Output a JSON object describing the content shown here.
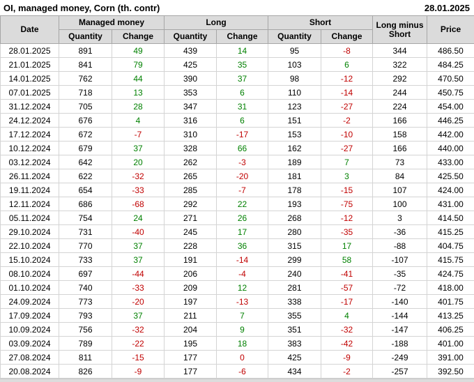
{
  "title": "OI, managed money, Corn (th. contr)",
  "report_date": "28.01.2025",
  "colors": {
    "positive": "#008000",
    "negative": "#c00000",
    "header_bg": "#dbdbdb",
    "header_border": "#a6a6a6",
    "row_border": "#d4d4d4"
  },
  "chart_data": {
    "type": "table",
    "title": "OI, managed money, Corn (th. contr)",
    "as_of_date": "28.01.2025",
    "column_groups": [
      {
        "label": "Date"
      },
      {
        "label": "Managed money",
        "children": [
          "Quantity",
          "Change"
        ]
      },
      {
        "label": "Long",
        "children": [
          "Quantity",
          "Change"
        ]
      },
      {
        "label": "Short",
        "children": [
          "Quantity",
          "Change"
        ]
      },
      {
        "label": "Long minus Short"
      },
      {
        "label": "Price"
      }
    ],
    "columns": [
      "Date",
      "Managed money Quantity",
      "Managed money Change",
      "Long Quantity",
      "Long Change",
      "Short Quantity",
      "Short Change",
      "Long minus Short",
      "Price"
    ],
    "color_rule": "change columns (Managed money Change, Long Change, Short Change): values > 0 green, values <= 0 red; all other columns black",
    "rows": [
      [
        "28.01.2025",
        891,
        49,
        439,
        14,
        95,
        -8,
        344,
        "486.50"
      ],
      [
        "21.01.2025",
        841,
        79,
        425,
        35,
        103,
        6,
        322,
        "484.25"
      ],
      [
        "14.01.2025",
        762,
        44,
        390,
        37,
        98,
        -12,
        292,
        "470.50"
      ],
      [
        "07.01.2025",
        718,
        13,
        353,
        6,
        110,
        -14,
        244,
        "450.75"
      ],
      [
        "31.12.2024",
        705,
        28,
        347,
        31,
        123,
        -27,
        224,
        "454.00"
      ],
      [
        "24.12.2024",
        676,
        4,
        316,
        6,
        151,
        -2,
        166,
        "446.25"
      ],
      [
        "17.12.2024",
        672,
        -7,
        310,
        -17,
        153,
        -10,
        158,
        "442.00"
      ],
      [
        "10.12.2024",
        679,
        37,
        328,
        66,
        162,
        -27,
        166,
        "440.00"
      ],
      [
        "03.12.2024",
        642,
        20,
        262,
        -3,
        189,
        7,
        73,
        "433.00"
      ],
      [
        "26.11.2024",
        622,
        -32,
        265,
        -20,
        181,
        3,
        84,
        "425.50"
      ],
      [
        "19.11.2024",
        654,
        -33,
        285,
        -7,
        178,
        -15,
        107,
        "424.00"
      ],
      [
        "12.11.2024",
        686,
        -68,
        292,
        22,
        193,
        -75,
        100,
        "431.00"
      ],
      [
        "05.11.2024",
        754,
        24,
        271,
        26,
        268,
        -12,
        3,
        "414.50"
      ],
      [
        "29.10.2024",
        731,
        -40,
        245,
        17,
        280,
        -35,
        -36,
        "415.25"
      ],
      [
        "22.10.2024",
        770,
        37,
        228,
        36,
        315,
        17,
        -88,
        "404.75"
      ],
      [
        "15.10.2024",
        733,
        37,
        191,
        -14,
        299,
        58,
        -107,
        "415.75"
      ],
      [
        "08.10.2024",
        697,
        -44,
        206,
        -4,
        240,
        -41,
        -35,
        "424.75"
      ],
      [
        "01.10.2024",
        740,
        -33,
        209,
        12,
        281,
        -57,
        -72,
        "418.00"
      ],
      [
        "24.09.2024",
        773,
        -20,
        197,
        -13,
        338,
        -17,
        -140,
        "401.75"
      ],
      [
        "17.09.2024",
        793,
        37,
        211,
        7,
        355,
        4,
        -144,
        "413.25"
      ],
      [
        "10.09.2024",
        756,
        -32,
        204,
        9,
        351,
        -32,
        -147,
        "406.25"
      ],
      [
        "03.09.2024",
        789,
        -22,
        195,
        18,
        383,
        -42,
        -188,
        "401.00"
      ],
      [
        "27.08.2024",
        811,
        -15,
        177,
        0,
        425,
        -9,
        -249,
        "391.00"
      ],
      [
        "20.08.2024",
        826,
        -9,
        177,
        -6,
        434,
        -2,
        -257,
        "392.50"
      ]
    ]
  }
}
